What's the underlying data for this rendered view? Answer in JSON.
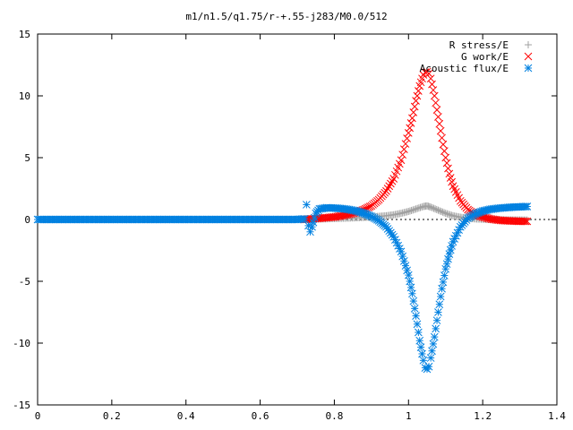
{
  "chart_data": {
    "type": "scatter",
    "title": "m1/n1.5/q1.75/r-+.55-j283/M0.0/512",
    "xlabel": "",
    "ylabel": "",
    "xlim": [
      0,
      1.4
    ],
    "ylim": [
      -15,
      15
    ],
    "x_ticks": [
      "0",
      "0.2",
      "0.4",
      "0.6",
      "0.8",
      "1",
      "1.2",
      "1.4"
    ],
    "y_ticks": [
      "15",
      "10",
      "5",
      "0",
      "-5",
      "-10",
      "-15"
    ],
    "x_tick_values": [
      0,
      0.2,
      0.4,
      0.6,
      0.8,
      1.0,
      1.2,
      1.4
    ],
    "y_tick_values": [
      15,
      10,
      5,
      0,
      -5,
      -10,
      -15
    ],
    "grid": false,
    "legend_position": "top-right",
    "series": [
      {
        "name": "R stress/E",
        "marker": "plus",
        "color": "#a0a0a0",
        "x": [
          0.72,
          0.74,
          0.76,
          0.78,
          0.8,
          0.82,
          0.84,
          0.86,
          0.88,
          0.9,
          0.92,
          0.94,
          0.96,
          0.98,
          1.0,
          1.02,
          1.04,
          1.05,
          1.06,
          1.08,
          1.1,
          1.12,
          1.14,
          1.16,
          1.18,
          1.2,
          1.22,
          1.24,
          1.26,
          1.28,
          1.3,
          1.32
        ],
        "y": [
          0.0,
          0.02,
          0.04,
          0.06,
          0.08,
          0.1,
          0.12,
          0.14,
          0.17,
          0.2,
          0.25,
          0.3,
          0.38,
          0.5,
          0.65,
          0.85,
          1.05,
          1.1,
          1.0,
          0.75,
          0.5,
          0.3,
          0.18,
          0.1,
          0.05,
          0.02,
          0.0,
          -0.02,
          -0.03,
          -0.04,
          -0.04,
          -0.05
        ]
      },
      {
        "name": "G work/E",
        "marker": "cross",
        "color": "#ff0000",
        "x": [
          0.72,
          0.74,
          0.76,
          0.78,
          0.8,
          0.82,
          0.84,
          0.86,
          0.88,
          0.9,
          0.92,
          0.94,
          0.96,
          0.98,
          1.0,
          1.01,
          1.02,
          1.03,
          1.04,
          1.045,
          1.05,
          1.055,
          1.06,
          1.07,
          1.08,
          1.09,
          1.1,
          1.11,
          1.12,
          1.14,
          1.16,
          1.18,
          1.2,
          1.22,
          1.24,
          1.26,
          1.28,
          1.3,
          1.32
        ],
        "y": [
          0.0,
          0.05,
          0.1,
          0.15,
          0.2,
          0.3,
          0.42,
          0.58,
          0.8,
          1.1,
          1.6,
          2.3,
          3.3,
          4.8,
          7.0,
          8.2,
          9.6,
          10.8,
          11.7,
          11.9,
          11.95,
          11.8,
          11.4,
          10.0,
          8.3,
          6.6,
          5.0,
          3.7,
          2.7,
          1.5,
          0.8,
          0.4,
          0.2,
          0.05,
          -0.05,
          -0.1,
          -0.12,
          -0.15,
          -0.15
        ]
      },
      {
        "name": "Acoustic flux/E",
        "marker": "star",
        "color": "#0080e0",
        "x": [
          0.0,
          0.02,
          0.04,
          0.06,
          0.08,
          0.1,
          0.12,
          0.14,
          0.16,
          0.18,
          0.2,
          0.22,
          0.24,
          0.26,
          0.28,
          0.3,
          0.32,
          0.34,
          0.36,
          0.38,
          0.4,
          0.42,
          0.44,
          0.46,
          0.48,
          0.5,
          0.52,
          0.54,
          0.56,
          0.58,
          0.6,
          0.62,
          0.64,
          0.66,
          0.68,
          0.7,
          0.72,
          0.725,
          0.73,
          0.735,
          0.74,
          0.75,
          0.76,
          0.78,
          0.8,
          0.82,
          0.84,
          0.86,
          0.88,
          0.9,
          0.92,
          0.94,
          0.96,
          0.98,
          1.0,
          1.01,
          1.02,
          1.03,
          1.04,
          1.045,
          1.05,
          1.055,
          1.06,
          1.07,
          1.08,
          1.09,
          1.1,
          1.11,
          1.12,
          1.14,
          1.16,
          1.18,
          1.2,
          1.22,
          1.24,
          1.26,
          1.28,
          1.3,
          1.32
        ],
        "y": [
          0,
          0,
          0,
          0,
          0,
          0,
          0,
          0,
          0,
          0,
          0,
          0,
          0,
          0,
          0,
          0,
          0,
          0,
          0,
          0,
          0,
          0,
          0,
          0,
          0,
          0,
          0,
          0,
          0,
          0,
          0,
          0,
          0,
          0,
          0,
          0,
          0.05,
          1.2,
          -0.5,
          -1.0,
          -0.6,
          0.5,
          0.85,
          0.95,
          0.92,
          0.88,
          0.8,
          0.68,
          0.5,
          0.25,
          -0.1,
          -0.6,
          -1.4,
          -2.6,
          -4.5,
          -6.0,
          -7.8,
          -9.8,
          -11.4,
          -12.0,
          -12.1,
          -11.9,
          -11.2,
          -9.5,
          -7.5,
          -5.6,
          -4.0,
          -2.8,
          -1.8,
          -0.6,
          0.1,
          0.45,
          0.68,
          0.82,
          0.9,
          0.95,
          1.0,
          1.02,
          1.05
        ]
      }
    ]
  }
}
